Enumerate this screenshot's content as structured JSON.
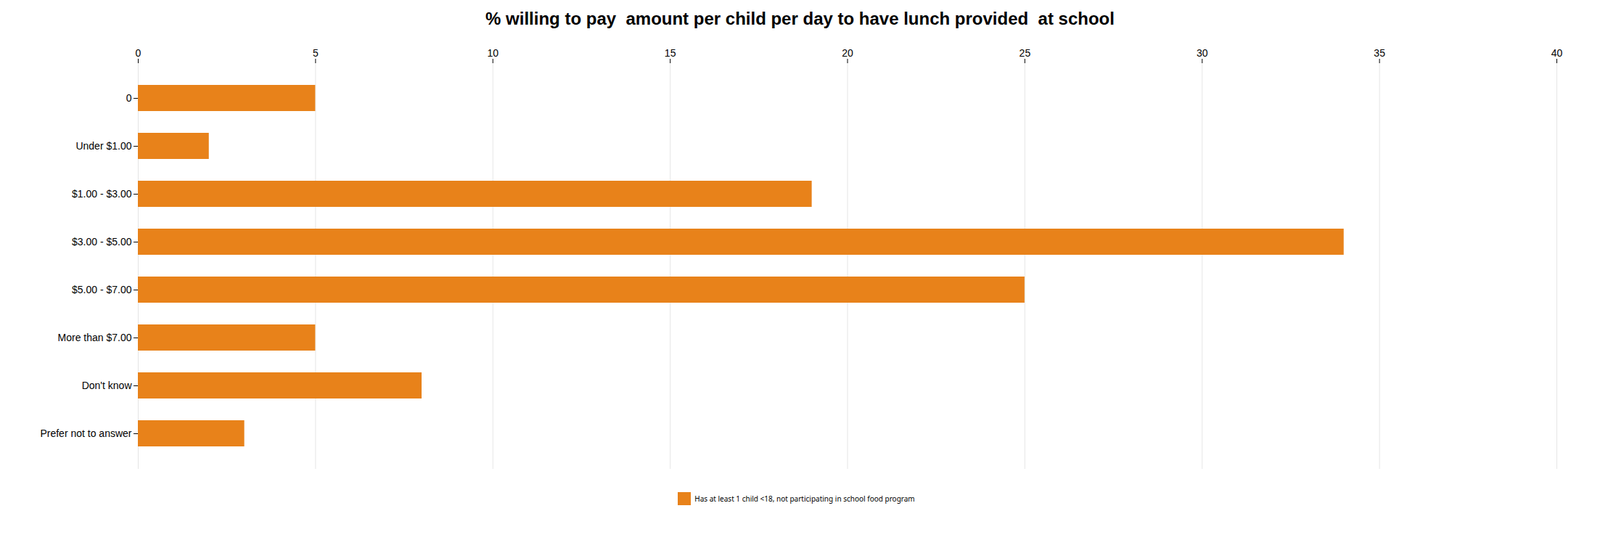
{
  "chart_data": {
    "type": "bar",
    "title": "% willing to pay  amount per child per day to have lunch provided  at school",
    "orientation": "horizontal",
    "categories": [
      "0",
      "Under $1.00",
      "$1.00 - $3.00",
      "$3.00 - $5.00",
      "$5.00 - $7.00",
      "More than $7.00",
      "Don't know",
      "Prefer not to answer"
    ],
    "series": [
      {
        "name": "Has at least 1 child <18, not participating in school food program",
        "color": "#E8821A",
        "values": [
          5,
          2,
          19,
          34,
          25,
          5,
          8,
          3
        ]
      }
    ],
    "xlim": [
      0,
      40
    ],
    "xticks": [
      0,
      5,
      10,
      15,
      20,
      25,
      30,
      35,
      40
    ],
    "grid": true,
    "legend": "bottom"
  }
}
